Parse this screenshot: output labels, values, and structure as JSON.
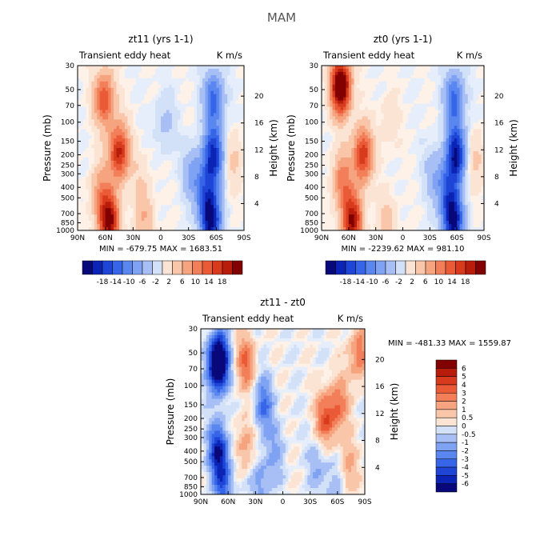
{
  "figure_title": "MAM",
  "colors": {
    "neg": [
      "#08087a",
      "#0b24b5",
      "#1e45d6",
      "#3765e8",
      "#5a86f0",
      "#7fa2f2",
      "#a7bff5",
      "#d2e1f8"
    ],
    "pos": [
      "#fbe4d3",
      "#f9c6aa",
      "#f6a47f",
      "#f27f59",
      "#ea5a36",
      "#d73a1c",
      "#b81c0b",
      "#820000"
    ],
    "frame": "#000000"
  },
  "chart_data": [
    {
      "type": "heatmap",
      "title": "zt11 (yrs 1-1)",
      "left_label": "Transient eddy heat",
      "right_label": "K m/s",
      "xlabel": "",
      "ylabel": "Pressure (mb)",
      "ylabel_right": "Height (km)",
      "x_ticks": [
        "90N",
        "60N",
        "30N",
        "0",
        "30S",
        "60S",
        "90S"
      ],
      "y_ticks": [
        "30",
        "50",
        "70",
        "100",
        "150",
        "200",
        "250",
        "300",
        "400",
        "500",
        "700",
        "850",
        "1000"
      ],
      "height_ticks": [
        "20",
        "16",
        "12",
        "8",
        "4"
      ],
      "min_max": "MIN = -679.75   MAX = 1683.51",
      "scale_max": 18,
      "colorbar": {
        "orientation": "horizontal",
        "labels": [
          "-18",
          "-14",
          "-10",
          "-6",
          "-2",
          "2",
          "6",
          "10",
          "14",
          "18"
        ]
      },
      "features": [
        {
          "lat": 62,
          "p": 60,
          "value": 11
        },
        {
          "lat": 46,
          "p": 190,
          "value": 14
        },
        {
          "lat": 57,
          "p": 850,
          "value": 17
        },
        {
          "lat": 66,
          "p": 450,
          "value": 6
        },
        {
          "lat": 18,
          "p": 850,
          "value": 4
        },
        {
          "lat": 22,
          "p": 350,
          "value": 2
        },
        {
          "lat": -58,
          "p": 60,
          "value": -10
        },
        {
          "lat": -58,
          "p": 200,
          "value": -14
        },
        {
          "lat": -55,
          "p": 850,
          "value": -16
        },
        {
          "lat": -50,
          "p": 450,
          "value": -8
        },
        {
          "lat": -35,
          "p": 300,
          "value": -5
        },
        {
          "lat": -5,
          "p": 100,
          "value": -3
        },
        {
          "lat": -80,
          "p": 220,
          "value": 3
        }
      ]
    },
    {
      "type": "heatmap",
      "title": "zt0 (yrs 1-1)",
      "left_label": "Transient eddy heat",
      "right_label": "K m/s",
      "xlabel": "",
      "ylabel": "Pressure (mb)",
      "ylabel_right": "Height (km)",
      "x_ticks": [
        "90N",
        "60N",
        "30N",
        "0",
        "30S",
        "60S",
        "90S"
      ],
      "y_ticks": [
        "30",
        "50",
        "70",
        "100",
        "150",
        "200",
        "250",
        "300",
        "400",
        "500",
        "700",
        "850",
        "1000"
      ],
      "height_ticks": [
        "20",
        "16",
        "12",
        "8",
        "4"
      ],
      "min_max": "MIN = -2239.62   MAX = 981.10",
      "scale_max": 18,
      "colorbar": {
        "orientation": "horizontal",
        "labels": [
          "-18",
          "-14",
          "-10",
          "-6",
          "-2",
          "2",
          "6",
          "10",
          "14",
          "18"
        ]
      },
      "features": [
        {
          "lat": 70,
          "p": 45,
          "value": 22
        },
        {
          "lat": 45,
          "p": 200,
          "value": 13
        },
        {
          "lat": 57,
          "p": 850,
          "value": 16
        },
        {
          "lat": 68,
          "p": 350,
          "value": 8
        },
        {
          "lat": 18,
          "p": 850,
          "value": 3
        },
        {
          "lat": 15,
          "p": 100,
          "value": 2
        },
        {
          "lat": -58,
          "p": 60,
          "value": -10
        },
        {
          "lat": -60,
          "p": 200,
          "value": -16
        },
        {
          "lat": -57,
          "p": 850,
          "value": -16
        },
        {
          "lat": -50,
          "p": 450,
          "value": -8
        },
        {
          "lat": -35,
          "p": 300,
          "value": -4
        },
        {
          "lat": -82,
          "p": 220,
          "value": 3
        }
      ]
    },
    {
      "type": "heatmap",
      "title": "zt11 - zt0",
      "left_label": "Transient eddy heat",
      "right_label": "K m/s",
      "xlabel": "",
      "ylabel": "Pressure (mb)",
      "ylabel_right": "Height (km)",
      "x_ticks": [
        "90N",
        "60N",
        "30N",
        "0",
        "30S",
        "60S",
        "90S"
      ],
      "y_ticks": [
        "30",
        "50",
        "70",
        "100",
        "150",
        "200",
        "250",
        "300",
        "400",
        "500",
        "700",
        "850",
        "1000"
      ],
      "height_ticks": [
        "20",
        "16",
        "12",
        "8",
        "4"
      ],
      "min_max": "MIN = -481.33   MAX = 1559.87",
      "scale_max": 6,
      "colorbar": {
        "orientation": "vertical",
        "labels": [
          "6",
          "5",
          "4",
          "3",
          "2",
          "1",
          "0.5",
          "0",
          "-0.5",
          "-1",
          "-2",
          "-3",
          "-4",
          "-5",
          "-6"
        ]
      },
      "features": [
        {
          "lat": 72,
          "p": 60,
          "value": -9
        },
        {
          "lat": 72,
          "p": 400,
          "value": -5
        },
        {
          "lat": 66,
          "p": 850,
          "value": -3
        },
        {
          "lat": 42,
          "p": 60,
          "value": 3
        },
        {
          "lat": 42,
          "p": 350,
          "value": 2
        },
        {
          "lat": 22,
          "p": 150,
          "value": -3
        },
        {
          "lat": 25,
          "p": 800,
          "value": -2
        },
        {
          "lat": 8,
          "p": 400,
          "value": -1.5
        },
        {
          "lat": -48,
          "p": 200,
          "value": 3.5
        },
        {
          "lat": -63,
          "p": 150,
          "value": 2.5
        },
        {
          "lat": -85,
          "p": 50,
          "value": 3
        },
        {
          "lat": -40,
          "p": 550,
          "value": -1.5
        },
        {
          "lat": -72,
          "p": 600,
          "value": 2
        },
        {
          "lat": -60,
          "p": 850,
          "value": -1.5
        }
      ]
    }
  ]
}
